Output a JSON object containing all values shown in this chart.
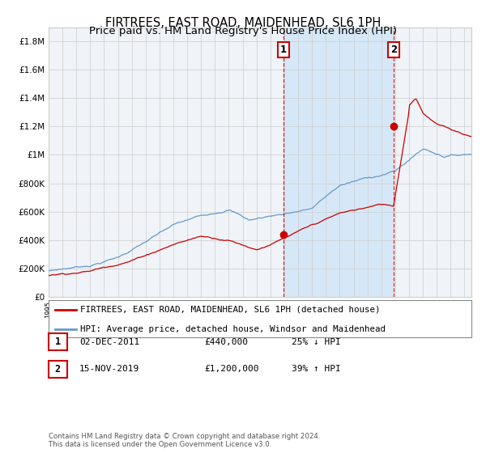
{
  "title": "FIRTREES, EAST ROAD, MAIDENHEAD, SL6 1PH",
  "subtitle": "Price paid vs. HM Land Registry's House Price Index (HPI)",
  "legend_label_red": "FIRTREES, EAST ROAD, MAIDENHEAD, SL6 1PH (detached house)",
  "legend_label_blue": "HPI: Average price, detached house, Windsor and Maidenhead",
  "footnote": "Contains HM Land Registry data © Crown copyright and database right 2024.\nThis data is licensed under the Open Government Licence v3.0.",
  "red_color": "#cc0000",
  "blue_color": "#6699cc",
  "background_color": "#ffffff",
  "plot_bg_color": "#f0f4f8",
  "shading_color": "#d6e8f7",
  "grid_color": "#cccccc",
  "sale1_year": 2011.92,
  "sale1_value": 440000,
  "sale1_label": "1",
  "sale1_date": "02-DEC-2011",
  "sale2_year": 2019.88,
  "sale2_value": 1200000,
  "sale2_label": "2",
  "sale2_date": "15-NOV-2019",
  "ylim": [
    0,
    1900000
  ],
  "yticks": [
    0,
    200000,
    400000,
    600000,
    800000,
    1000000,
    1200000,
    1400000,
    1600000,
    1800000
  ],
  "ytick_labels": [
    "£0",
    "£200K",
    "£400K",
    "£600K",
    "£800K",
    "£1M",
    "£1.2M",
    "£1.4M",
    "£1.6M",
    "£1.8M"
  ],
  "xmin": 1995,
  "xmax": 2025.5
}
